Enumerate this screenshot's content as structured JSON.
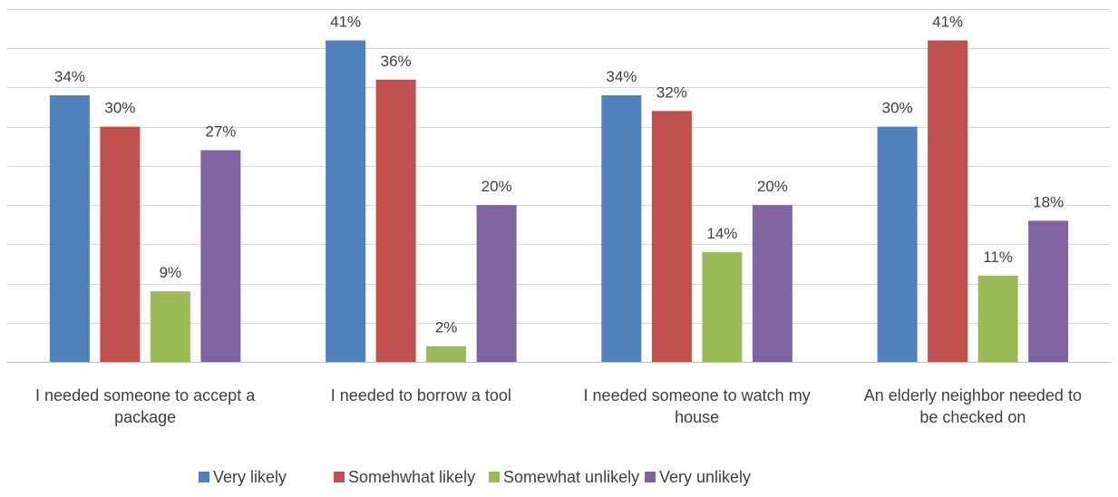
{
  "chart_data": {
    "type": "bar",
    "categories": [
      [
        "I needed someone to accept a",
        "package"
      ],
      [
        "I needed to borrow a tool"
      ],
      [
        "I needed someone to watch my",
        "house"
      ],
      [
        "An elderly neighbor needed to",
        "be checked on"
      ]
    ],
    "series": [
      {
        "name": "Very likely",
        "color": "#4f81bd",
        "values": [
          34,
          41,
          34,
          30
        ]
      },
      {
        "name": "Somehwhat likely",
        "color": "#c0504d",
        "values": [
          30,
          36,
          32,
          41
        ]
      },
      {
        "name": "Somewhat unlikely",
        "color": "#9bbb59",
        "values": [
          9,
          2,
          14,
          11
        ]
      },
      {
        "name": "Very unlikely",
        "color": "#8064a2",
        "values": [
          27,
          20,
          20,
          18
        ]
      }
    ],
    "value_suffix": "%",
    "ylim": [
      0,
      45
    ],
    "grid": true,
    "legend_position": "bottom",
    "title": "",
    "xlabel": "",
    "ylabel": ""
  }
}
